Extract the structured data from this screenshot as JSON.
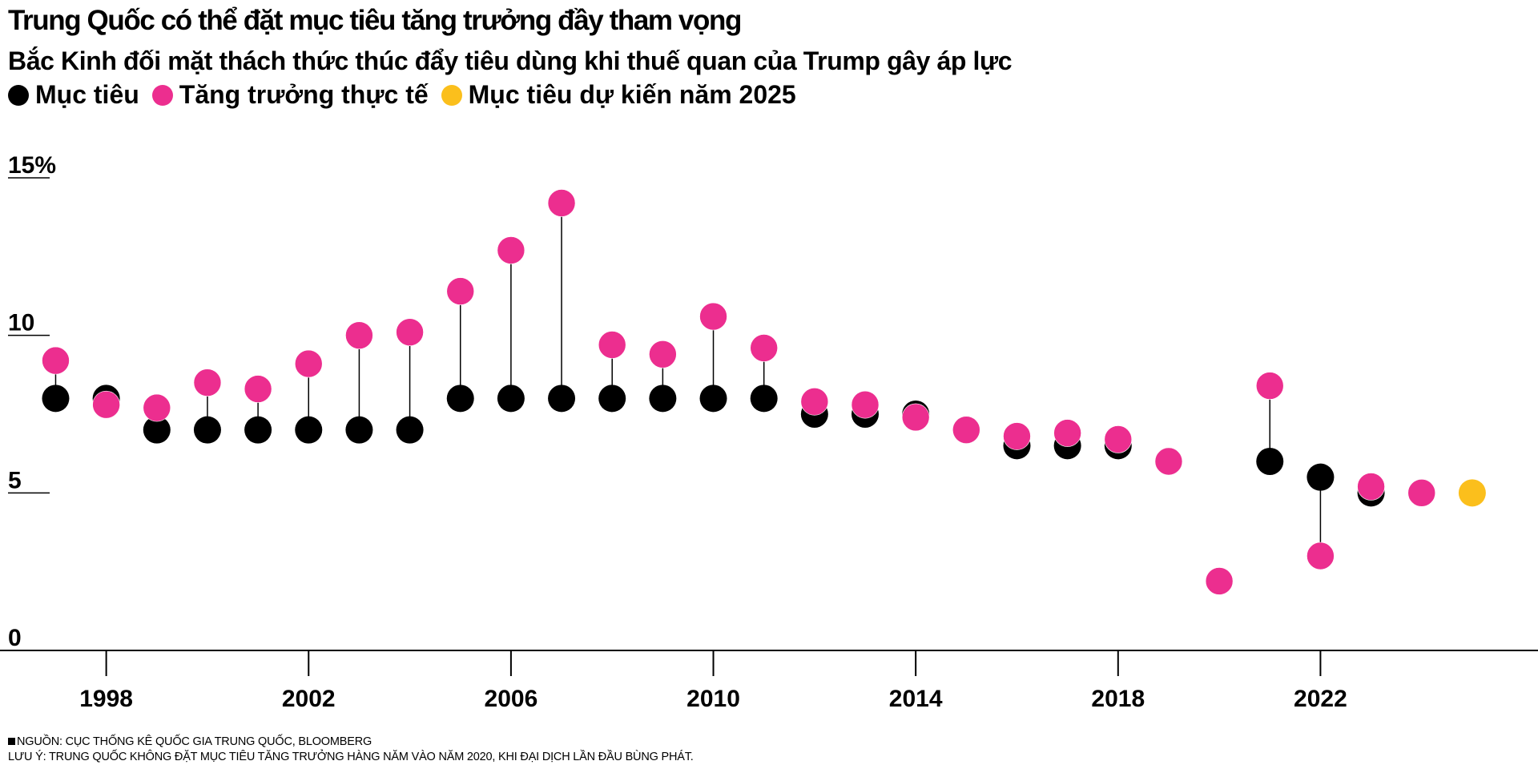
{
  "header": {
    "title": "Trung Quốc có thể đặt mục tiêu tăng trưởng đầy tham vọng",
    "subtitle": "Bắc Kinh đối mặt thách thức thúc đẩy tiêu dùng khi thuế quan của Trump gây áp lực"
  },
  "legend": {
    "target": "Mục tiêu",
    "actual": "Tăng trưởng thực tế",
    "projected": "Mục tiêu dự kiến năm 2025"
  },
  "colors": {
    "target": "#000000",
    "actual": "#ec2e8f",
    "projected": "#fbbf1c"
  },
  "footer": {
    "source": "NGUỒN: CỤC THỐNG KÊ QUỐC GIA TRUNG QUỐC, BLOOMBERG",
    "note": "LƯU Ý: TRUNG QUỐC KHÔNG ĐẶT MỤC TIÊU TĂNG TRƯỞNG HÀNG NĂM VÀO NĂM 2020, KHI ĐẠI DỊCH LẦN ĐẦU BÙNG PHÁT."
  },
  "chart_data": {
    "type": "scatter",
    "title": "Trung Quốc có thể đặt mục tiêu tăng trưởng đầy tham vọng",
    "subtitle": "Bắc Kinh đối mặt thách thức thúc đẩy tiêu dùng khi thuế quan của Trump gây áp lực",
    "x": [
      1997,
      1998,
      1999,
      2000,
      2001,
      2002,
      2003,
      2004,
      2005,
      2006,
      2007,
      2008,
      2009,
      2010,
      2011,
      2012,
      2013,
      2014,
      2015,
      2016,
      2017,
      2018,
      2019,
      2020,
      2021,
      2022,
      2023,
      2024,
      2025
    ],
    "series": [
      {
        "name": "Mục tiêu",
        "values": [
          8.0,
          8.0,
          7.0,
          7.0,
          7.0,
          7.0,
          7.0,
          7.0,
          8.0,
          8.0,
          8.0,
          8.0,
          8.0,
          8.0,
          8.0,
          7.5,
          7.5,
          7.5,
          7.0,
          6.5,
          6.5,
          6.5,
          6.0,
          null,
          6.0,
          5.5,
          5.0,
          5.0,
          null
        ]
      },
      {
        "name": "Tăng trưởng thực tế",
        "values": [
          9.2,
          7.8,
          7.7,
          8.5,
          8.3,
          9.1,
          10.0,
          10.1,
          11.4,
          12.7,
          14.2,
          9.7,
          9.4,
          10.6,
          9.6,
          7.9,
          7.8,
          7.4,
          7.0,
          6.8,
          6.9,
          6.7,
          6.0,
          2.2,
          8.4,
          3.0,
          5.2,
          5.0,
          null
        ]
      },
      {
        "name": "Mục tiêu dự kiến năm 2025",
        "values": [
          null,
          null,
          null,
          null,
          null,
          null,
          null,
          null,
          null,
          null,
          null,
          null,
          null,
          null,
          null,
          null,
          null,
          null,
          null,
          null,
          null,
          null,
          null,
          null,
          null,
          null,
          null,
          null,
          5.0
        ]
      }
    ],
    "x_ticks": [
      1998,
      2002,
      2006,
      2010,
      2014,
      2018,
      2022
    ],
    "x_tick_labels": [
      "1998",
      "2002",
      "2006",
      "2010",
      "2014",
      "2018",
      "2022"
    ],
    "y_ticks": [
      0,
      5,
      10,
      15
    ],
    "y_tick_labels": [
      "0",
      "5",
      "10",
      "15%"
    ],
    "xlim": [
      1995.9,
      2026.3
    ],
    "ylim": [
      0,
      15
    ],
    "grid": false,
    "legend_position": "top-left"
  }
}
